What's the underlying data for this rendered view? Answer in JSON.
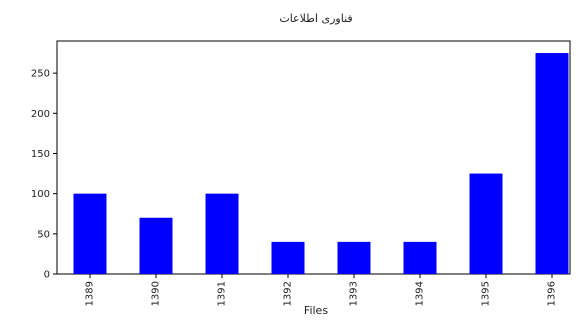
{
  "chart_data": {
    "type": "bar",
    "title": "فناوری اطلاعات",
    "xlabel": "Files",
    "ylabel": "",
    "categories": [
      "1389",
      "1390",
      "1391",
      "1392",
      "1393",
      "1394",
      "1395",
      "1396"
    ],
    "values": [
      100,
      70,
      100,
      40,
      40,
      40,
      125,
      275
    ],
    "ylim": [
      0,
      290
    ],
    "yticks": [
      0,
      50,
      100,
      150,
      200,
      250
    ],
    "bar_color": "#0000ff",
    "grid": false,
    "legend": "none"
  }
}
